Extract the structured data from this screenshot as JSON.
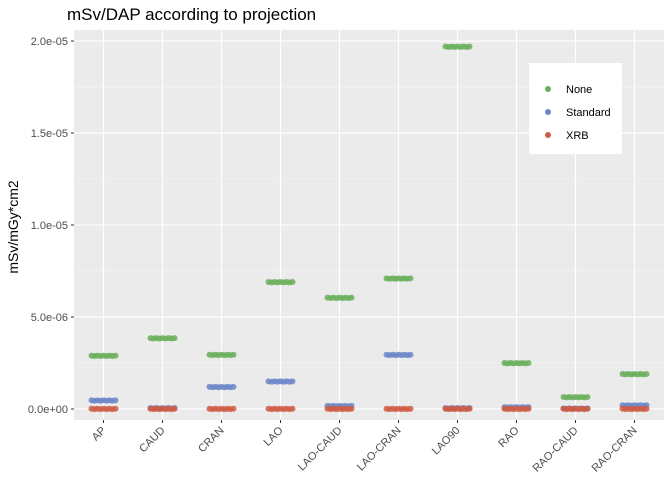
{
  "chart_data": {
    "type": "scatter",
    "title": "mSv/DAP according to projection",
    "xlabel": "",
    "ylabel": "mSv/mGy*cm2",
    "categories": [
      "AP",
      "CAUD",
      "CRAN",
      "LAO",
      "LAO-CAUD",
      "LAO-CRAN",
      "LAO90",
      "RAO",
      "RAO-CAUD",
      "RAO-CRAN"
    ],
    "yticks": [
      0,
      5e-06,
      1e-05,
      1.5e-05,
      2e-05
    ],
    "ytick_labels": [
      "0.0e+00",
      "5.0e-06",
      "1.0e-05",
      "1.5e-05",
      "2.0e-05"
    ],
    "ylim": [
      -6e-07,
      2.06e-05
    ],
    "grid": true,
    "legend_position": "top-right",
    "series": [
      {
        "name": "None",
        "color": "#6aaf5a",
        "values": [
          2.9e-06,
          3.85e-06,
          2.95e-06,
          6.9e-06,
          6.05e-06,
          7.1e-06,
          1.97e-05,
          2.5e-06,
          6.5e-07,
          1.9e-06
        ]
      },
      {
        "name": "Standard",
        "color": "#6b86c9",
        "values": [
          4.7e-07,
          5e-08,
          1.2e-06,
          1.5e-06,
          1.7e-07,
          2.95e-06,
          5e-08,
          1e-07,
          3e-08,
          2e-07
        ]
      },
      {
        "name": "XRB",
        "color": "#cf5c44",
        "values": [
          1e-08,
          1e-08,
          1e-08,
          1e-08,
          1e-08,
          1e-08,
          1e-08,
          1e-08,
          1e-08,
          1e-08
        ]
      }
    ]
  }
}
